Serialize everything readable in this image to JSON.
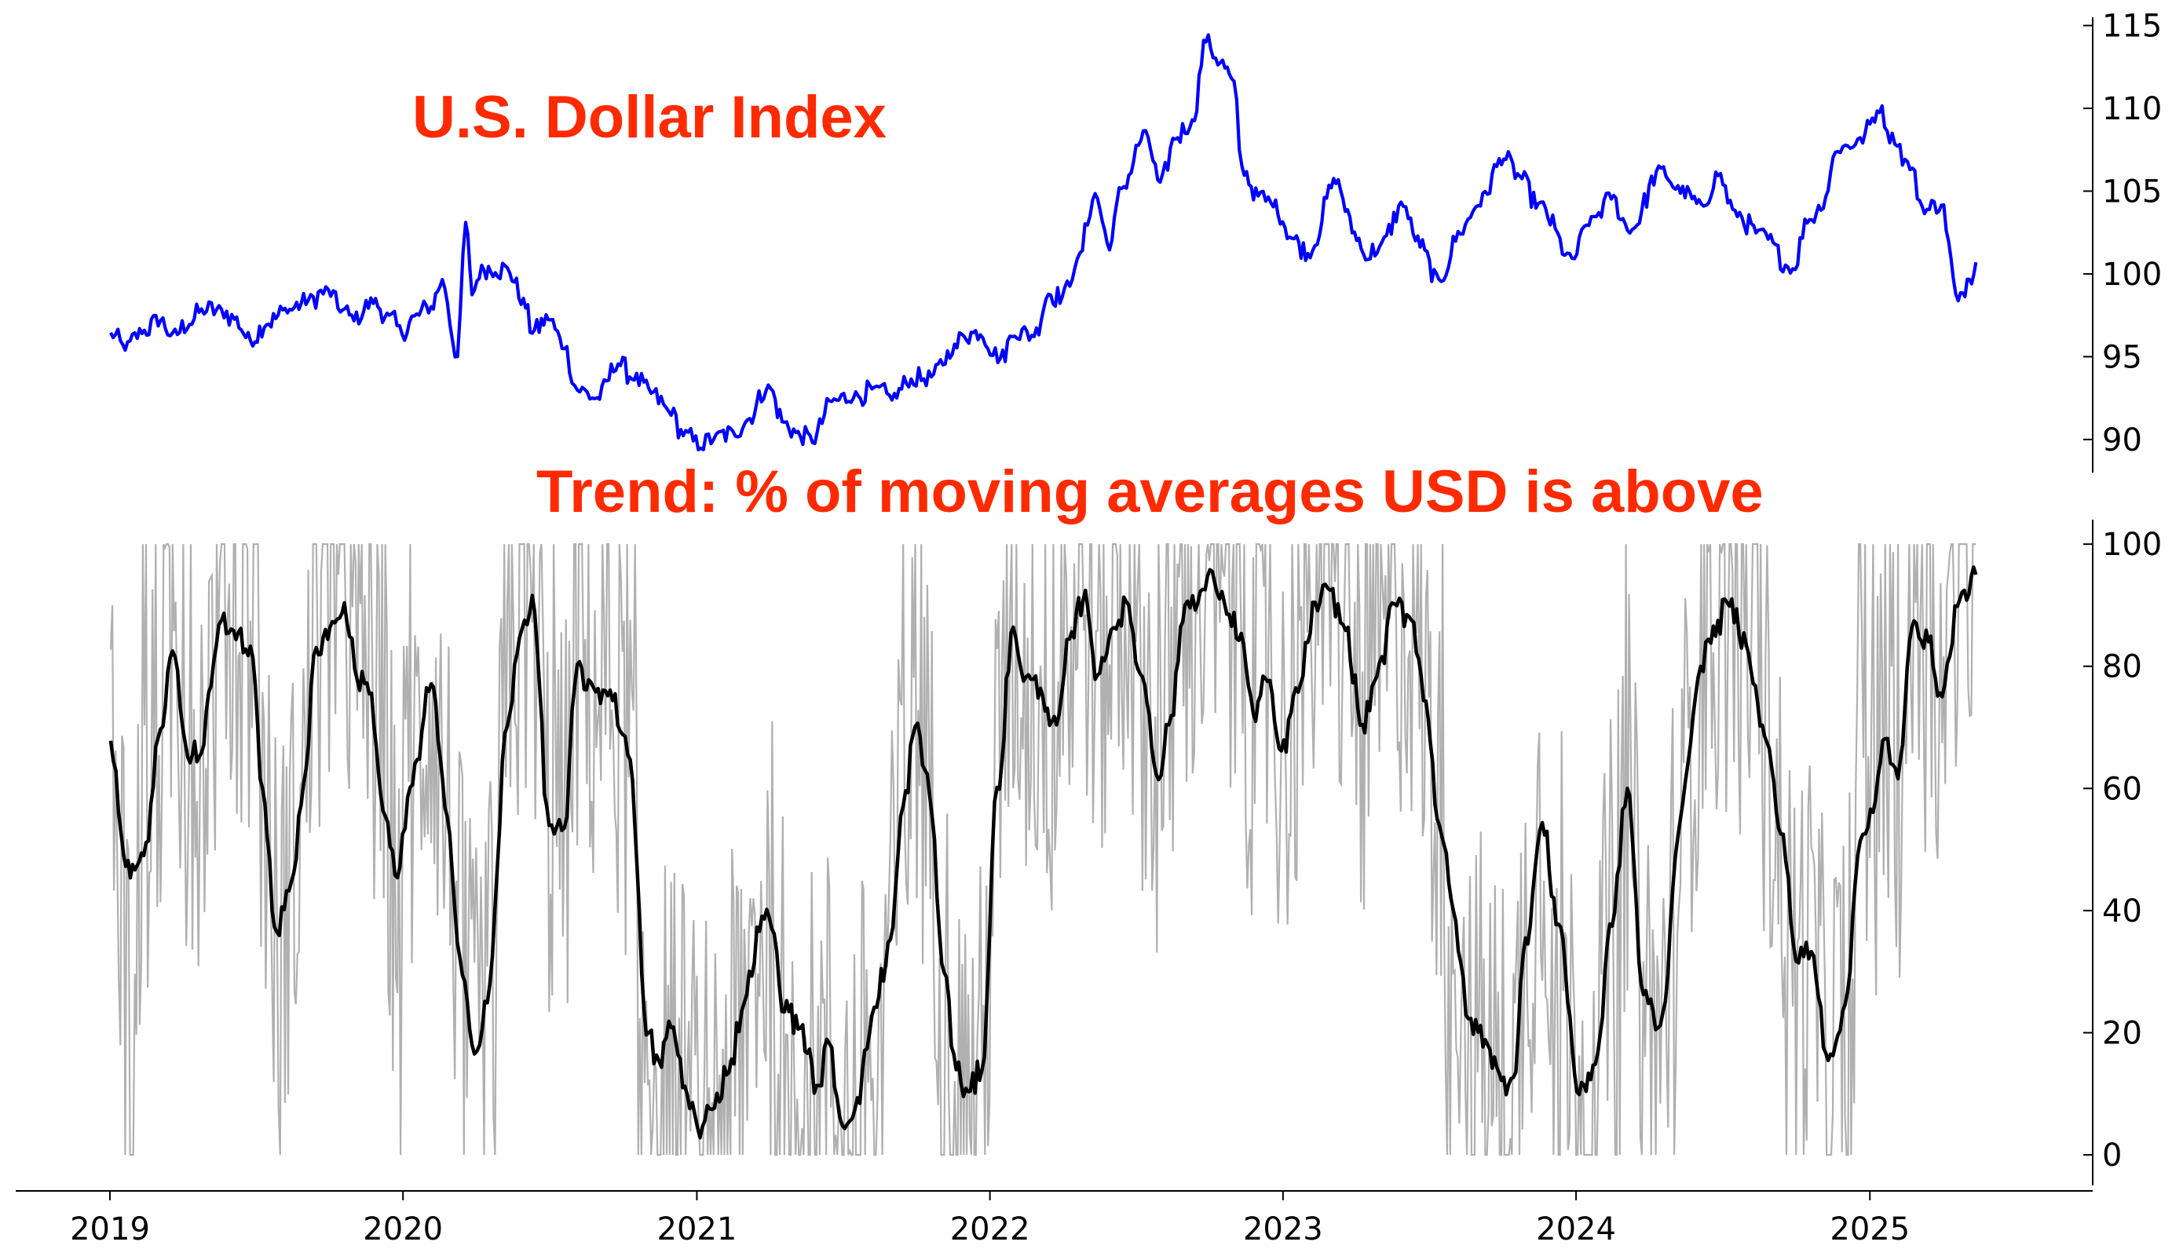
{
  "chart_data": [
    {
      "type": "line",
      "title": "U.S. Dollar Index",
      "x_range": [
        "2019-01-01",
        "2025-06-15"
      ],
      "ylim": [
        88,
        115.5
      ],
      "y_axis_side": "right",
      "y_ticks": [
        90,
        95,
        100,
        105,
        110,
        115
      ],
      "grid": false,
      "colors": {
        "title": "#ff2a00",
        "line": "#0000ff"
      },
      "series": [
        {
          "points": [
            [
              "2019-01-02",
              96.4
            ],
            [
              "2019-01-20",
              95.5
            ],
            [
              "2019-02-10",
              96.5
            ],
            [
              "2019-03-05",
              97.2
            ],
            [
              "2019-03-20",
              96.3
            ],
            [
              "2019-04-10",
              97.0
            ],
            [
              "2019-04-25",
              97.8
            ],
            [
              "2019-05-20",
              97.8
            ],
            [
              "2019-06-05",
              97.3
            ],
            [
              "2019-06-25",
              96.0
            ],
            [
              "2019-07-15",
              97.0
            ],
            [
              "2019-08-10",
              97.8
            ],
            [
              "2019-09-05",
              98.4
            ],
            [
              "2019-09-30",
              99.0
            ],
            [
              "2019-10-15",
              97.8
            ],
            [
              "2019-11-01",
              97.3
            ],
            [
              "2019-11-25",
              98.3
            ],
            [
              "2019-12-15",
              97.4
            ],
            [
              "2019-12-31",
              96.4
            ],
            [
              "2020-01-15",
              97.4
            ],
            [
              "2020-02-05",
              98.0
            ],
            [
              "2020-02-19",
              99.6
            ],
            [
              "2020-03-09",
              95.0
            ],
            [
              "2020-03-19",
              103.1
            ],
            [
              "2020-03-27",
              98.8
            ],
            [
              "2020-04-08",
              100.4
            ],
            [
              "2020-04-25",
              100.2
            ],
            [
              "2020-05-10",
              100.3
            ],
            [
              "2020-05-30",
              98.4
            ],
            [
              "2020-06-10",
              96.5
            ],
            [
              "2020-06-30",
              97.3
            ],
            [
              "2020-07-20",
              95.6
            ],
            [
              "2020-08-05",
              93.0
            ],
            [
              "2020-08-30",
              92.5
            ],
            [
              "2020-09-25",
              94.6
            ],
            [
              "2020-10-15",
              93.7
            ],
            [
              "2020-11-05",
              92.8
            ],
            [
              "2020-11-30",
              91.6
            ],
            [
              "2020-12-15",
              90.3
            ],
            [
              "2021-01-06",
              89.6
            ],
            [
              "2021-01-25",
              90.2
            ],
            [
              "2021-02-15",
              90.4
            ],
            [
              "2021-03-05",
              91.2
            ],
            [
              "2021-03-31",
              93.2
            ],
            [
              "2021-04-20",
              91.0
            ],
            [
              "2021-05-10",
              90.2
            ],
            [
              "2021-05-25",
              89.9
            ],
            [
              "2021-06-18",
              92.3
            ],
            [
              "2021-07-15",
              92.6
            ],
            [
              "2021-08-10",
              93.0
            ],
            [
              "2021-09-01",
              92.5
            ],
            [
              "2021-09-25",
              93.6
            ],
            [
              "2021-10-20",
              93.8
            ],
            [
              "2021-11-15",
              95.3
            ],
            [
              "2021-11-30",
              96.3
            ],
            [
              "2021-12-20",
              96.4
            ],
            [
              "2022-01-14",
              94.9
            ],
            [
              "2022-02-01",
              96.4
            ],
            [
              "2022-02-25",
              96.3
            ],
            [
              "2022-03-15",
              98.8
            ],
            [
              "2022-04-01",
              98.6
            ],
            [
              "2022-04-20",
              100.8
            ],
            [
              "2022-05-12",
              104.8
            ],
            [
              "2022-05-30",
              101.6
            ],
            [
              "2022-06-14",
              105.2
            ],
            [
              "2022-07-14",
              108.5
            ],
            [
              "2022-08-01",
              105.4
            ],
            [
              "2022-08-20",
              108.2
            ],
            [
              "2022-09-10",
              109.2
            ],
            [
              "2022-09-27",
              114.1
            ],
            [
              "2022-10-15",
              112.8
            ],
            [
              "2022-11-01",
              111.5
            ],
            [
              "2022-11-11",
              106.4
            ],
            [
              "2022-12-01",
              104.7
            ],
            [
              "2022-12-20",
              104.2
            ],
            [
              "2023-01-15",
              102.1
            ],
            [
              "2023-02-01",
              101.2
            ],
            [
              "2023-03-08",
              105.6
            ],
            [
              "2023-03-31",
              102.5
            ],
            [
              "2023-04-14",
              101.0
            ],
            [
              "2023-05-01",
              101.6
            ],
            [
              "2023-05-31",
              104.2
            ],
            [
              "2023-06-15",
              102.1
            ],
            [
              "2023-07-14",
              99.6
            ],
            [
              "2023-08-10",
              102.5
            ],
            [
              "2023-09-01",
              104.2
            ],
            [
              "2023-10-03",
              107.0
            ],
            [
              "2023-10-20",
              106.0
            ],
            [
              "2023-11-15",
              104.2
            ],
            [
              "2023-12-27",
              100.9
            ],
            [
              "2024-01-20",
              103.3
            ],
            [
              "2024-02-14",
              104.6
            ],
            [
              "2024-03-08",
              102.6
            ],
            [
              "2024-04-16",
              106.3
            ],
            [
              "2024-05-10",
              105.0
            ],
            [
              "2024-06-05",
              104.1
            ],
            [
              "2024-06-26",
              106.0
            ],
            [
              "2024-07-17",
              103.7
            ],
            [
              "2024-08-15",
              102.5
            ],
            [
              "2024-09-27",
              100.3
            ],
            [
              "2024-10-15",
              103.2
            ],
            [
              "2024-11-01",
              104.0
            ],
            [
              "2024-11-22",
              107.5
            ],
            [
              "2024-12-20",
              108.1
            ],
            [
              "2025-01-13",
              109.9
            ],
            [
              "2025-02-01",
              108.0
            ],
            [
              "2025-02-20",
              106.4
            ],
            [
              "2025-03-10",
              103.8
            ],
            [
              "2025-03-31",
              104.2
            ],
            [
              "2025-04-21",
              98.3
            ],
            [
              "2025-05-05",
              99.8
            ],
            [
              "2025-05-13",
              100.7
            ]
          ]
        }
      ]
    },
    {
      "type": "line",
      "title": "Trend: % of moving averages USD is above",
      "x_range": [
        "2019-01-01",
        "2025-06-15"
      ],
      "ylim": [
        -5,
        104
      ],
      "y_axis_side": "right",
      "y_ticks": [
        0,
        20,
        40,
        60,
        80,
        100
      ],
      "x_ticks": [
        "2019",
        "2020",
        "2021",
        "2022",
        "2023",
        "2024",
        "2025"
      ],
      "grid": false,
      "colors": {
        "title": "#ff2a00",
        "smoothed": "#000000",
        "raw": "#b0b0b0"
      },
      "series": [
        {
          "role": "smoothed",
          "points": [
            [
              "2019-01-02",
              68
            ],
            [
              "2019-01-18",
              49
            ],
            [
              "2019-02-01",
              47
            ],
            [
              "2019-02-15",
              51
            ],
            [
              "2019-03-05",
              70
            ],
            [
              "2019-03-20",
              83
            ],
            [
              "2019-04-08",
              65
            ],
            [
              "2019-04-25",
              66
            ],
            [
              "2019-05-10",
              80
            ],
            [
              "2019-05-20",
              88
            ],
            [
              "2019-06-10",
              85
            ],
            [
              "2019-06-25",
              83
            ],
            [
              "2019-07-10",
              60
            ],
            [
              "2019-07-28",
              36
            ],
            [
              "2019-08-15",
              45
            ],
            [
              "2019-08-30",
              60
            ],
            [
              "2019-09-15",
              83
            ],
            [
              "2019-10-05",
              87
            ],
            [
              "2019-10-20",
              90
            ],
            [
              "2019-11-05",
              78
            ],
            [
              "2019-11-20",
              76
            ],
            [
              "2019-12-10",
              55
            ],
            [
              "2019-12-25",
              45
            ],
            [
              "2020-01-10",
              60
            ],
            [
              "2020-02-05",
              77
            ],
            [
              "2020-02-25",
              55
            ],
            [
              "2020-03-15",
              30
            ],
            [
              "2020-03-30",
              16
            ],
            [
              "2020-04-15",
              25
            ],
            [
              "2020-05-10",
              70
            ],
            [
              "2020-05-25",
              85
            ],
            [
              "2020-06-10",
              91
            ],
            [
              "2020-07-01",
              54
            ],
            [
              "2020-07-20",
              53
            ],
            [
              "2020-08-05",
              80
            ],
            [
              "2020-08-25",
              76
            ],
            [
              "2020-09-15",
              76
            ],
            [
              "2020-10-10",
              65
            ],
            [
              "2020-10-30",
              20
            ],
            [
              "2020-11-15",
              15
            ],
            [
              "2020-11-30",
              21
            ],
            [
              "2020-12-20",
              10
            ],
            [
              "2021-01-05",
              3
            ],
            [
              "2021-01-20",
              8
            ],
            [
              "2021-02-10",
              14
            ],
            [
              "2021-03-01",
              25
            ],
            [
              "2021-03-20",
              37
            ],
            [
              "2021-04-01",
              39
            ],
            [
              "2021-04-20",
              24
            ],
            [
              "2021-05-10",
              21
            ],
            [
              "2021-05-30",
              11
            ],
            [
              "2021-06-15",
              18
            ],
            [
              "2021-07-01",
              5
            ],
            [
              "2021-07-20",
              9
            ],
            [
              "2021-08-10",
              24
            ],
            [
              "2021-08-30",
              35
            ],
            [
              "2021-09-15",
              57
            ],
            [
              "2021-09-30",
              70
            ],
            [
              "2021-10-15",
              62
            ],
            [
              "2021-11-05",
              30
            ],
            [
              "2021-11-20",
              14
            ],
            [
              "2021-12-05",
              10
            ],
            [
              "2021-12-22",
              14
            ],
            [
              "2022-01-10",
              60
            ],
            [
              "2022-01-30",
              86
            ],
            [
              "2022-02-15",
              78
            ],
            [
              "2022-03-05",
              76
            ],
            [
              "2022-03-25",
              70
            ],
            [
              "2022-04-10",
              84
            ],
            [
              "2022-04-30",
              92
            ],
            [
              "2022-05-15",
              78
            ],
            [
              "2022-06-01",
              86
            ],
            [
              "2022-06-20",
              90
            ],
            [
              "2022-07-10",
              78
            ],
            [
              "2022-07-30",
              62
            ],
            [
              "2022-08-15",
              72
            ],
            [
              "2022-09-01",
              90
            ],
            [
              "2022-09-20",
              92
            ],
            [
              "2022-10-05",
              95
            ],
            [
              "2022-10-20",
              90
            ],
            [
              "2022-11-10",
              85
            ],
            [
              "2022-11-25",
              72
            ],
            [
              "2022-12-10",
              78
            ],
            [
              "2022-12-30",
              66
            ],
            [
              "2023-01-20",
              76
            ],
            [
              "2023-02-10",
              90
            ],
            [
              "2023-03-01",
              92
            ],
            [
              "2023-03-20",
              86
            ],
            [
              "2023-04-10",
              70
            ],
            [
              "2023-05-01",
              80
            ],
            [
              "2023-05-20",
              90
            ],
            [
              "2023-06-10",
              88
            ],
            [
              "2023-06-28",
              74
            ],
            [
              "2023-07-15",
              54
            ],
            [
              "2023-08-01",
              40
            ],
            [
              "2023-08-20",
              22
            ],
            [
              "2023-09-10",
              19
            ],
            [
              "2023-09-30",
              12
            ],
            [
              "2023-10-15",
              13
            ],
            [
              "2023-10-30",
              35
            ],
            [
              "2023-11-20",
              54
            ],
            [
              "2023-12-10",
              38
            ],
            [
              "2024-01-05",
              10
            ],
            [
              "2024-01-25",
              15
            ],
            [
              "2024-02-15",
              38
            ],
            [
              "2024-03-05",
              60
            ],
            [
              "2024-03-25",
              26
            ],
            [
              "2024-04-15",
              21
            ],
            [
              "2024-05-10",
              55
            ],
            [
              "2024-06-01",
              78
            ],
            [
              "2024-06-20",
              86
            ],
            [
              "2024-07-10",
              90
            ],
            [
              "2024-07-31",
              84
            ],
            [
              "2024-08-20",
              70
            ],
            [
              "2024-09-15",
              52
            ],
            [
              "2024-10-01",
              32
            ],
            [
              "2024-10-20",
              33
            ],
            [
              "2024-11-10",
              16
            ],
            [
              "2024-12-01",
              24
            ],
            [
              "2024-12-20",
              52
            ],
            [
              "2025-01-05",
              56
            ],
            [
              "2025-01-20",
              68
            ],
            [
              "2025-02-05",
              62
            ],
            [
              "2025-02-25",
              88
            ],
            [
              "2025-03-15",
              84
            ],
            [
              "2025-04-01",
              75
            ],
            [
              "2025-04-20",
              90
            ],
            [
              "2025-05-13",
              95
            ]
          ]
        }
      ]
    }
  ]
}
